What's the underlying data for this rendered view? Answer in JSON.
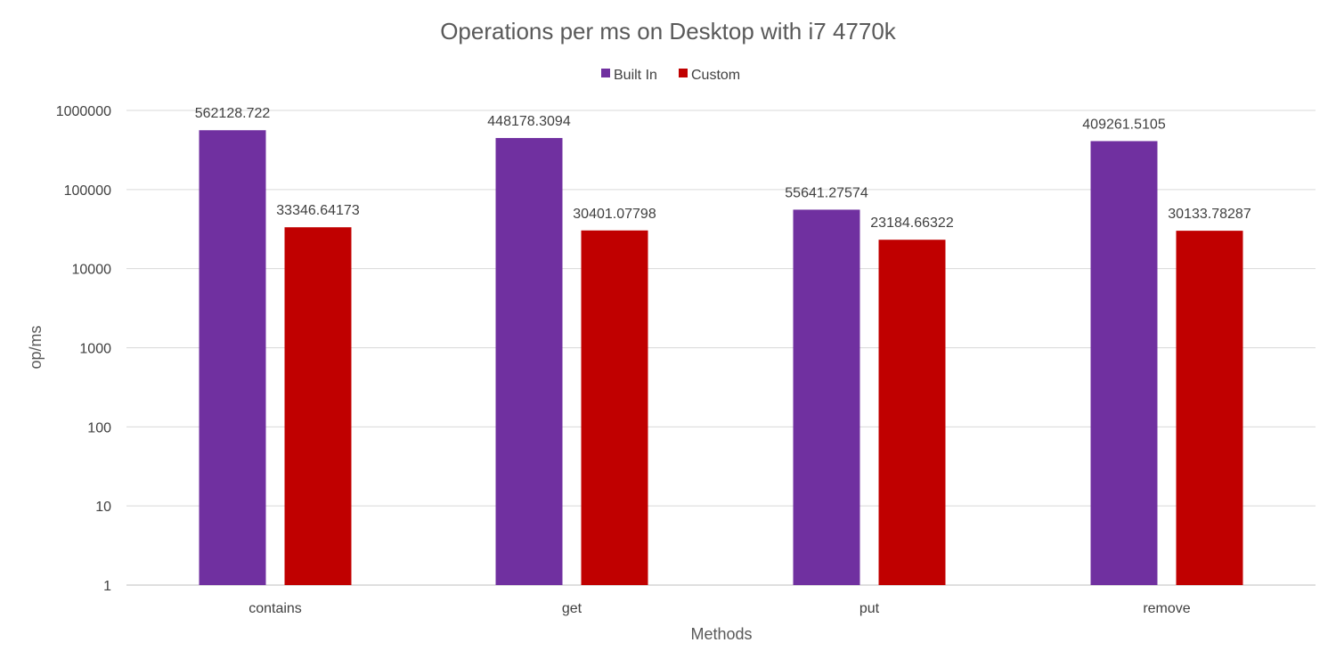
{
  "chart_data": {
    "type": "bar",
    "title": "Operations per ms on Desktop with i7 4770k",
    "xlabel": "Methods",
    "ylabel": "op/ms",
    "y_scale": "log",
    "ylim": [
      1,
      1000000
    ],
    "y_ticks": [
      "1",
      "10",
      "100",
      "1000",
      "10000",
      "100000",
      "1000000"
    ],
    "grid": true,
    "legend_position": "top",
    "categories": [
      "contains",
      "get",
      "put",
      "remove"
    ],
    "series": [
      {
        "name": "Built In",
        "color": "#7030A0",
        "values": [
          562128.722,
          448178.3094,
          55641.27574,
          409261.5105
        ],
        "labels": [
          "562128.722",
          "448178.3094",
          "55641.27574",
          "409261.5105"
        ]
      },
      {
        "name": "Custom",
        "color": "#C00000",
        "values": [
          33346.64173,
          30401.07798,
          23184.66322,
          30133.78287
        ],
        "labels": [
          "33346.64173",
          "30401.07798",
          "23184.66322",
          "30133.78287"
        ]
      }
    ]
  },
  "colors": {
    "gridline": "#d9d9d9",
    "axis": "#bfbfbf"
  }
}
